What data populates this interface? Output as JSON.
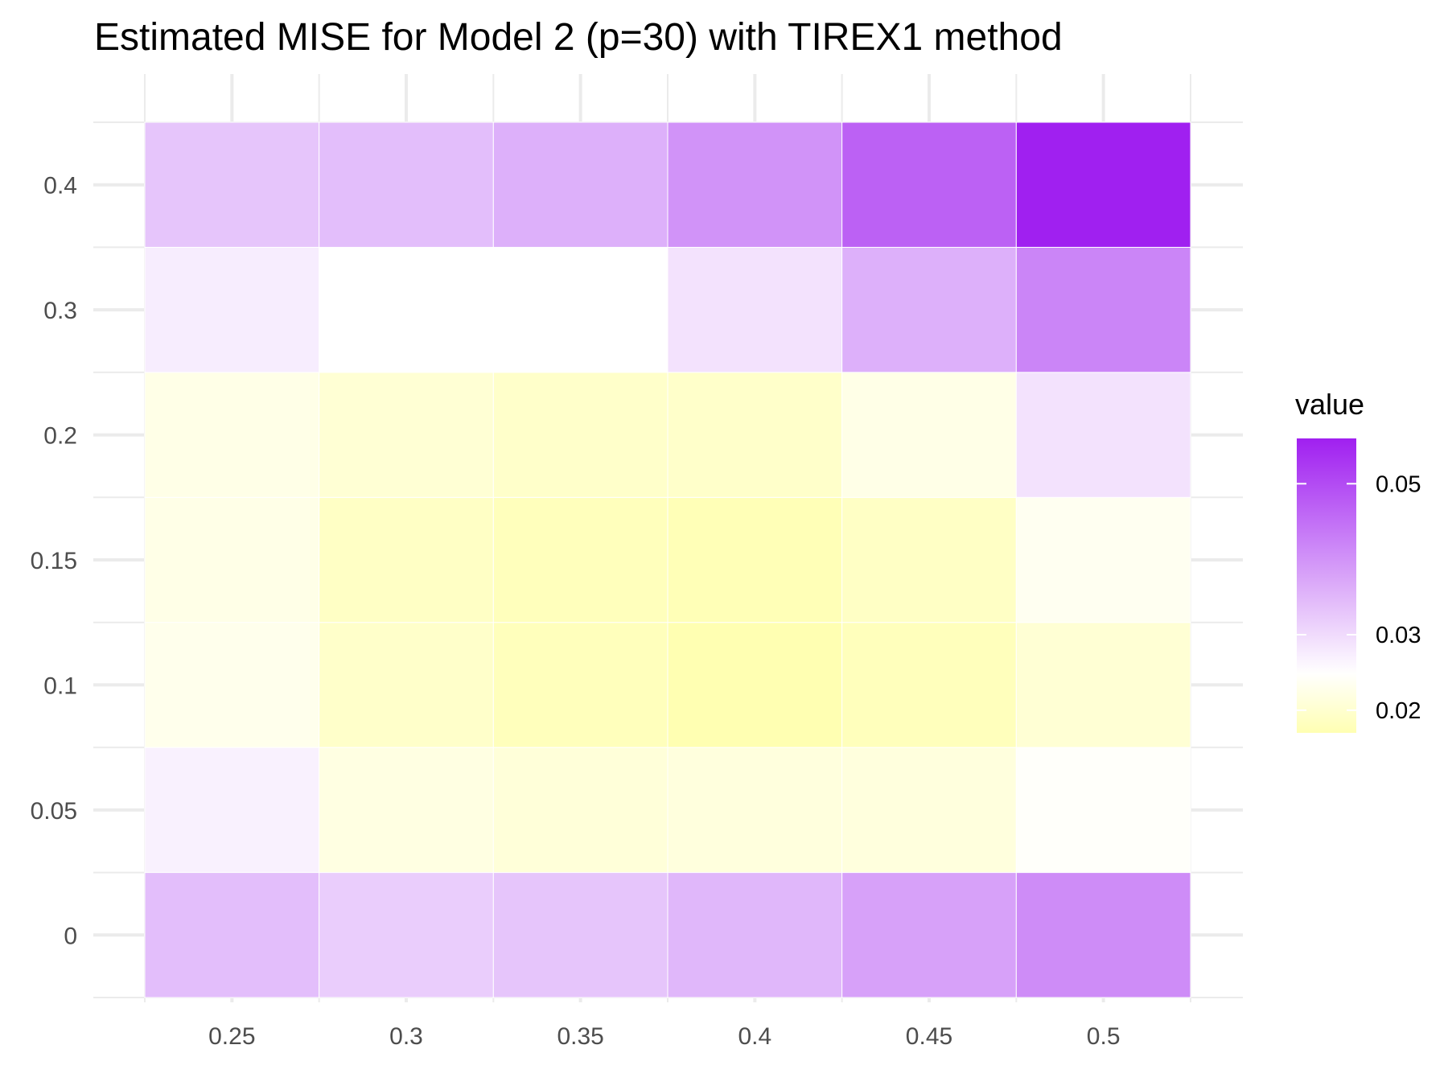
{
  "chart_data": {
    "type": "heatmap",
    "title": "Estimated MISE for Model 2 (p=30) with TIREX1 method",
    "xlabel": "",
    "ylabel": "",
    "x_categories": [
      "0.25",
      "0.3",
      "0.35",
      "0.4",
      "0.45",
      "0.5"
    ],
    "y_categories": [
      "0",
      "0.05",
      "0.1",
      "0.15",
      "0.2",
      "0.3",
      "0.4"
    ],
    "values": [
      [
        0.034,
        0.032,
        0.033,
        0.035,
        0.038,
        0.041
      ],
      [
        0.027,
        0.022,
        0.021,
        0.0215,
        0.0215,
        0.0245
      ],
      [
        0.023,
        0.0195,
        0.018,
        0.017,
        0.018,
        0.0205
      ],
      [
        0.0225,
        0.019,
        0.018,
        0.0175,
        0.019,
        0.0235
      ],
      [
        0.0225,
        0.0205,
        0.0195,
        0.0195,
        0.0225,
        0.029
      ],
      [
        0.0275,
        0.025,
        0.025,
        0.029,
        0.036,
        0.042
      ],
      [
        0.033,
        0.034,
        0.036,
        0.04,
        0.047,
        0.056
      ]
    ],
    "grid": true,
    "legend": {
      "title": "value",
      "position": "right",
      "ticks": [
        0.02,
        0.03,
        0.05
      ],
      "range": [
        0.017,
        0.056
      ],
      "midpoint": 0.025,
      "colors": {
        "low": "#ffffb2",
        "mid": "#ffffff",
        "high": "#a020f0"
      }
    }
  }
}
